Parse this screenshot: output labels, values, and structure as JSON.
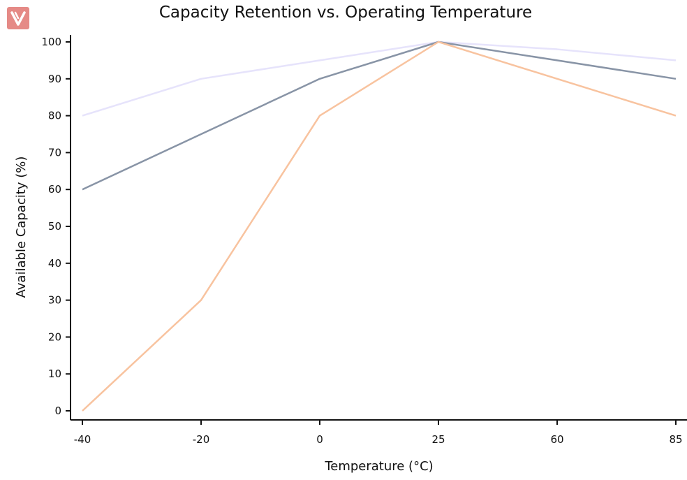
{
  "logo": {
    "icon": "v-logo-icon",
    "color": "#e58a86"
  },
  "chart_data": {
    "type": "line",
    "title": "Capacity Retention vs. Operating Temperature",
    "xlabel": "Temperature (°C)",
    "ylabel": "Available Capacity (%)",
    "categories": [
      "-40",
      "-20",
      "0",
      "25",
      "60",
      "85"
    ],
    "ylim": [
      0,
      100
    ],
    "yticks": [
      0,
      10,
      20,
      30,
      40,
      50,
      60,
      70,
      80,
      90,
      100
    ],
    "grid": false,
    "legend": "none",
    "series": [
      {
        "color": "#e6e3fb",
        "values": [
          80,
          90,
          95,
          100,
          98,
          95
        ]
      },
      {
        "color": "#8894a6",
        "values": [
          60,
          75,
          90,
          100,
          95,
          90
        ]
      },
      {
        "color": "#f8c39f",
        "values": [
          0,
          30,
          80,
          100,
          90,
          80
        ]
      }
    ]
  }
}
